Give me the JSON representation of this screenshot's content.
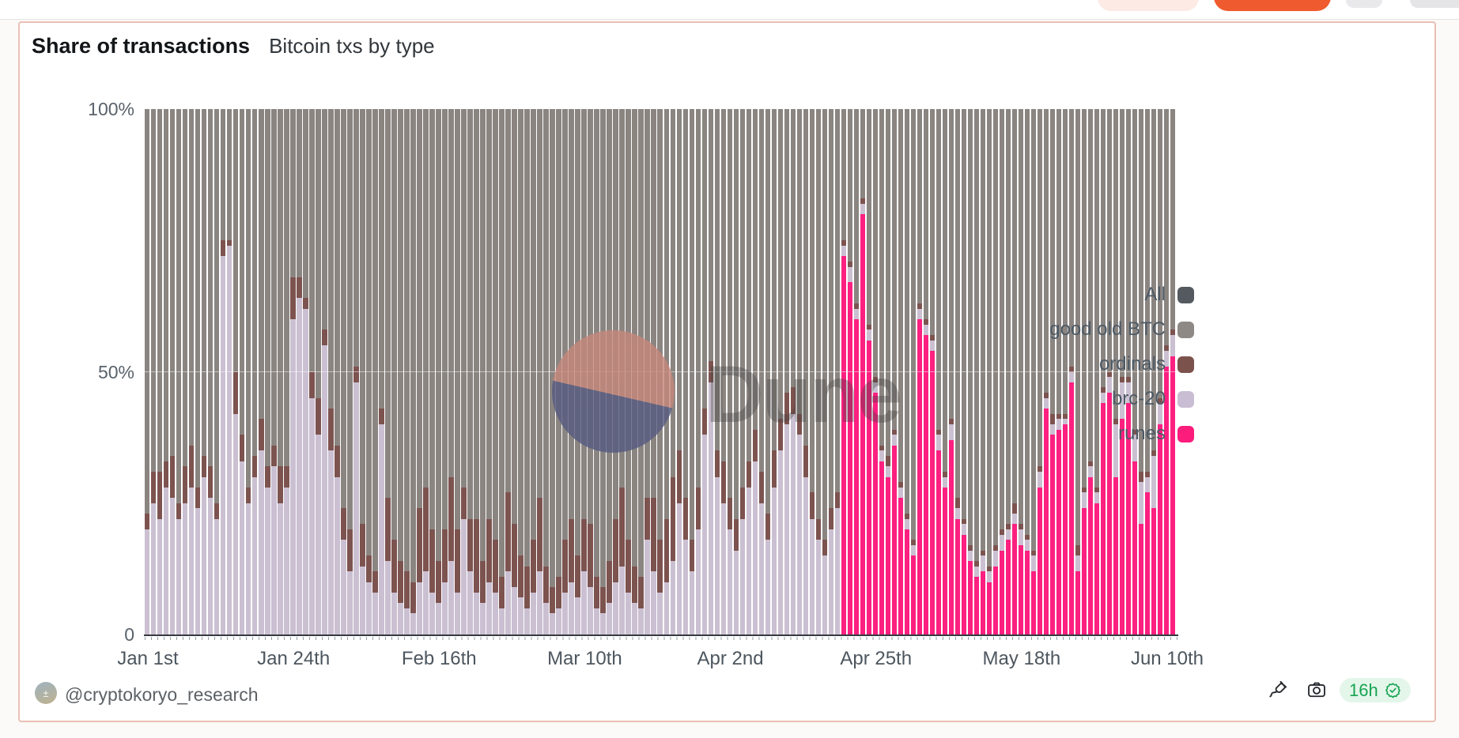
{
  "topbar": {
    "note": "partially visible cropped buttons at top edge",
    "button_colors": {
      "pink": "#fdeae5",
      "orange": "#ef5b2e",
      "gray": "#e9e9ec"
    }
  },
  "card": {
    "title": "Share of transactions",
    "subtitle": "Bitcoin txs by type"
  },
  "watermark": {
    "text": "Dune",
    "circle_top_color": "#c5877b",
    "circle_bottom_color": "#565b80"
  },
  "legend": [
    {
      "label": "All",
      "color": "#545a5f"
    },
    {
      "label": "good old BTC",
      "color": "#8e8985"
    },
    {
      "label": "ordinals",
      "color": "#7c524d"
    },
    {
      "label": "brc-20",
      "color": "#c9bdd3"
    },
    {
      "label": "runes",
      "color": "#fc1c7c"
    }
  ],
  "footer": {
    "handle": "@cryptokoryo_research",
    "badge": {
      "text": "16h",
      "icon": "seal-check-icon",
      "text_color": "#18a351",
      "bg": "#e4f6ea"
    }
  },
  "chart_data": {
    "type": "bar",
    "stacked": true,
    "normalized_percent": true,
    "title": "Share of transactions",
    "subtitle": "Bitcoin txs by type",
    "x_unit": "day",
    "x_start_label": "Jan 1st",
    "x_end_label": "Jun 10th",
    "num_bars": 163,
    "ylim": [
      0,
      100
    ],
    "grid": "subtle 50% line",
    "legend_position": "right",
    "yticks": [
      {
        "label": "100%",
        "value": 100
      },
      {
        "label": "50%",
        "value": 50
      },
      {
        "label": "0",
        "value": 0
      }
    ],
    "xticks": [
      {
        "label": "Jan 1st",
        "day": 1
      },
      {
        "label": "Jan 24th",
        "day": 24
      },
      {
        "label": "Feb 16th",
        "day": 47
      },
      {
        "label": "Mar 10th",
        "day": 70
      },
      {
        "label": "Apr 2nd",
        "day": 93
      },
      {
        "label": "Apr 25th",
        "day": 116
      },
      {
        "label": "May 18th",
        "day": 139
      },
      {
        "label": "Jun 10th",
        "day": 162
      }
    ],
    "series_note": "values are approximate percent shares per day; stack order is bottom to top; 'good old BTC' fills the remainder to 100%; 'All' appears only in the legend",
    "series": [
      {
        "name": "runes",
        "color": "#fc2080",
        "zeros_before": 110,
        "values": [
          72,
          67,
          60,
          80,
          56,
          46,
          33,
          30,
          36,
          26,
          20,
          15,
          60,
          57,
          54,
          35,
          28,
          37,
          22,
          19,
          14,
          11,
          12,
          10,
          13,
          16,
          18,
          21,
          17,
          16,
          12,
          28,
          43,
          38,
          39,
          40,
          48,
          12,
          24,
          30,
          25,
          44,
          46,
          30,
          41,
          44,
          33,
          21,
          27,
          24,
          40,
          51,
          53
        ]
      },
      {
        "name": "brc-20",
        "color": "#cbc0d2",
        "zeros_before": 0,
        "values": [
          20,
          25,
          22,
          28,
          26,
          22,
          25,
          28,
          24,
          30,
          26,
          22,
          72,
          74,
          42,
          33,
          25,
          30,
          35,
          28,
          32,
          25,
          28,
          60,
          64,
          62,
          45,
          38,
          55,
          35,
          30,
          18,
          12,
          48,
          13,
          10,
          8,
          40,
          14,
          8,
          6,
          5,
          4,
          10,
          12,
          8,
          6,
          10,
          14,
          8,
          22,
          12,
          8,
          6,
          10,
          8,
          5,
          12,
          9,
          7,
          5,
          8,
          12,
          6,
          4,
          5,
          8,
          10,
          7,
          12,
          9,
          5,
          4,
          6,
          10,
          13,
          8,
          6,
          5,
          18,
          12,
          8,
          10,
          14,
          25,
          18,
          12,
          20,
          38,
          48,
          30,
          25,
          20,
          16,
          22,
          28,
          33,
          25,
          18,
          28,
          35,
          40,
          42,
          38,
          30,
          22,
          18,
          15,
          20,
          24,
          2,
          3,
          2,
          2,
          2,
          2,
          2,
          2,
          2,
          2,
          2,
          2,
          2,
          2,
          2,
          3,
          2,
          3,
          2,
          2,
          2,
          2,
          3,
          2,
          3,
          3,
          2,
          2,
          3,
          2,
          3,
          3,
          2,
          2,
          2,
          1,
          2,
          3,
          3,
          2,
          2,
          2,
          3,
          10,
          7,
          4,
          5,
          8,
          3,
          10,
          4,
          3,
          4
        ]
      },
      {
        "name": "ordinals",
        "color": "#7d534f",
        "zeros_before": 0,
        "values": [
          3,
          6,
          9,
          5,
          8,
          3,
          7,
          8,
          4,
          4,
          6,
          3,
          3,
          1,
          8,
          5,
          3,
          4,
          6,
          4,
          4,
          7,
          4,
          8,
          4,
          2,
          5,
          7,
          3,
          8,
          6,
          6,
          8,
          3,
          8,
          5,
          4,
          3,
          12,
          10,
          8,
          7,
          6,
          14,
          16,
          12,
          8,
          10,
          16,
          12,
          6,
          10,
          14,
          8,
          12,
          10,
          6,
          15,
          12,
          8,
          8,
          10,
          14,
          7,
          5,
          6,
          10,
          12,
          8,
          10,
          12,
          6,
          5,
          8,
          12,
          15,
          10,
          7,
          6,
          8,
          14,
          10,
          12,
          16,
          10,
          8,
          6,
          8,
          5,
          4,
          5,
          8,
          6,
          6,
          6,
          5,
          6,
          6,
          5,
          7,
          6,
          6,
          5,
          4,
          6,
          5,
          4,
          3,
          4,
          3,
          1,
          1,
          1,
          1,
          1,
          1,
          1,
          2,
          1,
          1,
          1,
          1,
          1,
          1,
          1,
          1,
          1,
          1,
          2,
          1,
          1,
          1,
          1,
          1,
          1,
          1,
          1,
          2,
          1,
          1,
          1,
          1,
          1,
          2,
          1,
          1,
          1,
          2,
          1,
          1,
          1,
          1,
          1,
          1,
          1,
          1,
          1,
          2,
          1,
          1,
          1,
          1,
          1
        ]
      },
      {
        "name": "good old BTC",
        "color": "#8b8581",
        "values": "remainder"
      }
    ]
  }
}
